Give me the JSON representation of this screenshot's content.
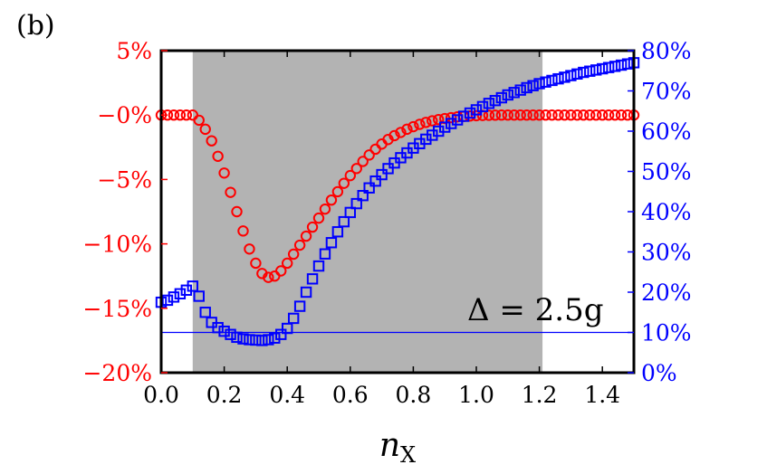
{
  "panel_label": "(b)",
  "colors": {
    "left_axis": "#ff0000",
    "right_axis": "#0000ff",
    "shade": "#b3b3b3"
  },
  "chart_data": {
    "type": "scatter",
    "title": "",
    "xlabel_main": "n",
    "xlabel_sub": "X",
    "xlim": [
      0.0,
      1.5
    ],
    "ylim_left": [
      -20,
      5
    ],
    "ylim_right": [
      0,
      80
    ],
    "x_ticks": [
      "0.0",
      "0.2",
      "0.4",
      "0.6",
      "0.8",
      "1.0",
      "1.2",
      "1.4"
    ],
    "y_left_ticks": [
      "5%",
      "−0%",
      "−5%",
      "−10%",
      "−15%",
      "−20%"
    ],
    "y_right_ticks": [
      "80%",
      "70%",
      "60%",
      "50%",
      "40%",
      "30%",
      "20%",
      "10%",
      "0%"
    ],
    "shaded_region": [
      0.1,
      1.21
    ],
    "hline_right": 10,
    "annotation": "Δ = 2.5g",
    "grid": false,
    "series": [
      {
        "axis": "left",
        "marker": "circle",
        "color": "#ff0000",
        "x": [
          0.0,
          0.02,
          0.04,
          0.06,
          0.08,
          0.1,
          0.12,
          0.14,
          0.16,
          0.18,
          0.2,
          0.22,
          0.24,
          0.26,
          0.28,
          0.3,
          0.32,
          0.34,
          0.36,
          0.38,
          0.4,
          0.42,
          0.44,
          0.46,
          0.48,
          0.5,
          0.52,
          0.54,
          0.56,
          0.58,
          0.6,
          0.62,
          0.64,
          0.66,
          0.68,
          0.7,
          0.72,
          0.74,
          0.76,
          0.78,
          0.8,
          0.82,
          0.84,
          0.86,
          0.88,
          0.9,
          0.92,
          0.94,
          0.96,
          0.98,
          1.0,
          1.02,
          1.04,
          1.06,
          1.08,
          1.1,
          1.12,
          1.14,
          1.16,
          1.18,
          1.2,
          1.22,
          1.24,
          1.26,
          1.28,
          1.3,
          1.32,
          1.34,
          1.36,
          1.38,
          1.4,
          1.42,
          1.44,
          1.46,
          1.48,
          1.5
        ],
        "y": [
          0,
          0,
          0,
          0,
          0,
          0,
          -0.4,
          -1.1,
          -2.0,
          -3.2,
          -4.5,
          -6.0,
          -7.5,
          -9.0,
          -10.4,
          -11.5,
          -12.3,
          -12.6,
          -12.5,
          -12.1,
          -11.5,
          -10.8,
          -10.1,
          -9.4,
          -8.7,
          -8.0,
          -7.3,
          -6.6,
          -5.95,
          -5.3,
          -4.7,
          -4.15,
          -3.6,
          -3.1,
          -2.65,
          -2.25,
          -1.9,
          -1.6,
          -1.35,
          -1.1,
          -0.9,
          -0.72,
          -0.57,
          -0.45,
          -0.35,
          -0.27,
          -0.2,
          -0.14,
          -0.1,
          -0.07,
          -0.05,
          -0.03,
          -0.02,
          -0.01,
          0,
          0,
          0,
          0,
          0,
          0,
          0,
          0,
          0,
          0,
          0,
          0,
          0,
          0,
          0,
          0,
          0,
          0,
          0,
          0,
          0,
          0
        ]
      },
      {
        "axis": "right",
        "marker": "square",
        "color": "#0000ff",
        "x": [
          0.0,
          0.02,
          0.04,
          0.06,
          0.08,
          0.1,
          0.12,
          0.14,
          0.16,
          0.18,
          0.2,
          0.22,
          0.24,
          0.26,
          0.28,
          0.3,
          0.32,
          0.34,
          0.36,
          0.38,
          0.4,
          0.42,
          0.44,
          0.46,
          0.48,
          0.5,
          0.52,
          0.54,
          0.56,
          0.58,
          0.6,
          0.62,
          0.64,
          0.66,
          0.68,
          0.7,
          0.72,
          0.74,
          0.76,
          0.78,
          0.8,
          0.82,
          0.84,
          0.86,
          0.88,
          0.9,
          0.92,
          0.94,
          0.96,
          0.98,
          1.0,
          1.02,
          1.04,
          1.06,
          1.08,
          1.1,
          1.12,
          1.14,
          1.16,
          1.18,
          1.2,
          1.22,
          1.24,
          1.26,
          1.28,
          1.3,
          1.32,
          1.34,
          1.36,
          1.38,
          1.4,
          1.42,
          1.44,
          1.46,
          1.48,
          1.5
        ],
        "y": [
          17.5,
          18.0,
          18.8,
          19.6,
          20.5,
          21.5,
          19.0,
          15.0,
          12.5,
          11.2,
          10.3,
          9.5,
          8.8,
          8.4,
          8.2,
          8.1,
          8.0,
          8.2,
          8.6,
          9.5,
          11.0,
          13.5,
          16.5,
          20.0,
          23.3,
          26.5,
          29.5,
          32.3,
          35.0,
          37.5,
          39.8,
          42.0,
          44.0,
          45.9,
          47.6,
          49.2,
          50.7,
          52.1,
          53.4,
          54.6,
          55.8,
          56.9,
          58.0,
          59.0,
          60.0,
          61.0,
          61.9,
          62.8,
          63.7,
          64.5,
          65.3,
          66.1,
          66.9,
          67.6,
          68.3,
          69.0,
          69.6,
          70.2,
          70.8,
          71.3,
          71.8,
          72.2,
          72.6,
          73.0,
          73.4,
          73.8,
          74.2,
          74.6,
          74.9,
          75.2,
          75.5,
          75.8,
          76.1,
          76.4,
          76.7,
          77.0
        ]
      }
    ]
  }
}
